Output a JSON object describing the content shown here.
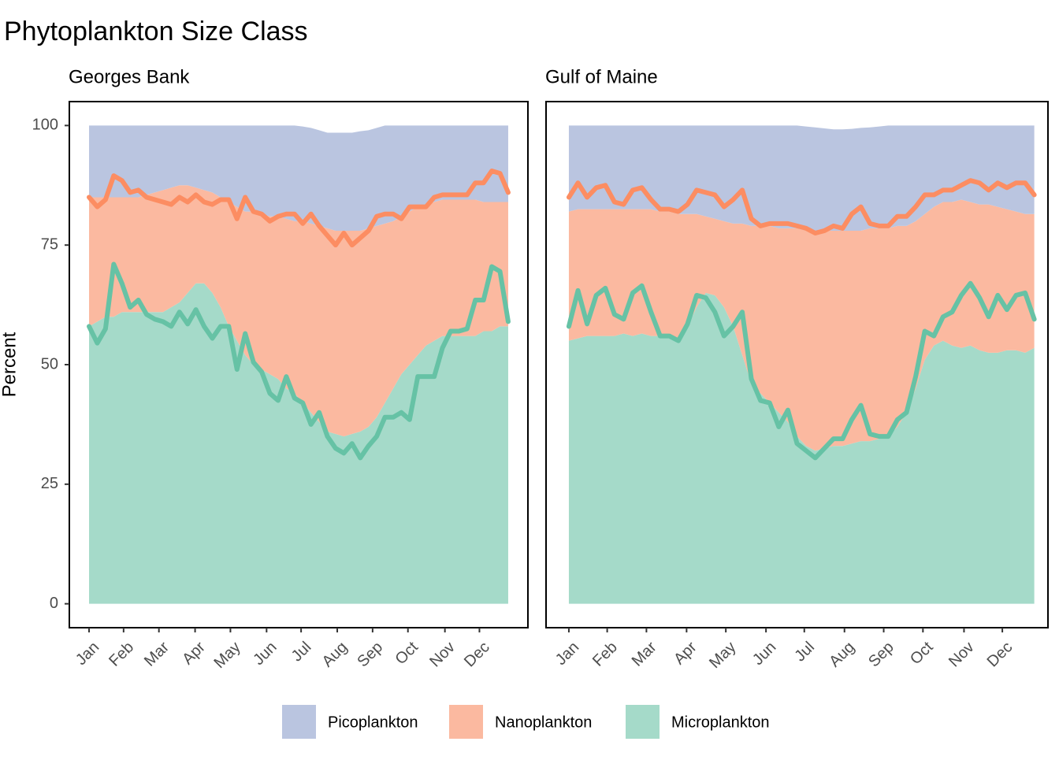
{
  "title": "Phytoplankton Size Class",
  "ylabel": "Percent",
  "chart_data": [
    {
      "type": "area",
      "subtitle": "Georges Bank",
      "x": [
        1,
        2,
        3,
        4,
        5,
        6,
        7,
        8,
        9,
        10,
        11,
        12,
        13,
        14,
        15,
        16,
        17,
        18,
        19,
        20,
        21,
        22,
        23,
        24,
        25,
        26,
        27,
        28,
        29,
        30,
        31,
        32,
        33,
        34,
        35,
        36,
        37,
        38,
        39,
        40,
        41,
        42,
        43,
        44,
        45,
        46,
        47,
        48,
        49,
        50,
        51,
        52
      ],
      "xlim": [
        -1.4,
        54.4
      ],
      "xticks": [
        {
          "value": 1,
          "label": "Jan"
        },
        {
          "value": 5.2,
          "label": "Feb"
        },
        {
          "value": 9.5,
          "label": "Mar"
        },
        {
          "value": 13.9,
          "label": "Apr"
        },
        {
          "value": 18.2,
          "label": "May"
        },
        {
          "value": 22.6,
          "label": "Jun"
        },
        {
          "value": 26.8,
          "label": "Jul"
        },
        {
          "value": 31.2,
          "label": "Aug"
        },
        {
          "value": 35.5,
          "label": "Sep"
        },
        {
          "value": 39.8,
          "label": "Oct"
        },
        {
          "value": 44.3,
          "label": "Nov"
        },
        {
          "value": 48.5,
          "label": "Dec"
        }
      ],
      "ylim": [
        -5,
        105
      ],
      "yticks": [
        0,
        25,
        50,
        75,
        100
      ],
      "stacked": true,
      "series": [
        {
          "name": "Picoplankton",
          "color": "#bac5e0",
          "values": [
            15,
            15,
            15,
            15,
            15,
            15,
            15,
            14.5,
            14,
            13.5,
            13,
            12.5,
            12.5,
            13,
            13.5,
            14,
            15,
            16,
            17,
            18,
            18,
            18.5,
            19,
            19,
            19.5,
            20,
            19.8,
            20,
            20,
            20,
            20.5,
            20.5,
            20.5,
            20.8,
            20.5,
            20.5,
            20.5,
            20,
            19,
            18,
            17,
            16.5,
            16,
            15.5,
            15.5,
            15.5,
            15.5,
            15.5,
            16,
            16,
            16,
            16
          ]
        },
        {
          "name": "Nanoplankton",
          "color": "#fbb9a0",
          "values": [
            27,
            26,
            25,
            25,
            24,
            24,
            24,
            24.5,
            25,
            25.5,
            25,
            24.5,
            22.5,
            20,
            19.5,
            21,
            23,
            26,
            28,
            30,
            32,
            32.5,
            33,
            34,
            35.5,
            36,
            38,
            39.5,
            41,
            42.5,
            42.5,
            43,
            42.5,
            42,
            41.5,
            40,
            37.5,
            35,
            33,
            32,
            31,
            29.5,
            29,
            28.5,
            28.5,
            28.5,
            28.5,
            28.5,
            27,
            27,
            26,
            26
          ]
        },
        {
          "name": "Microplankton",
          "color": "#a5dac9",
          "values": [
            58,
            59,
            60,
            60,
            61,
            61,
            61,
            61,
            61,
            61,
            62,
            63,
            65,
            67,
            67,
            65,
            62,
            58,
            55,
            52,
            50,
            49,
            48,
            47,
            45,
            44,
            42,
            40,
            38,
            36,
            35.5,
            35,
            35.5,
            36,
            37,
            39,
            42,
            45,
            48,
            50,
            52,
            54,
            55,
            56,
            56,
            56,
            56,
            56,
            57,
            57,
            58,
            58
          ]
        }
      ],
      "lines": [
        {
          "color": "#fc8d62",
          "values": [
            85,
            83,
            84.5,
            89.5,
            88.5,
            86,
            86.5,
            85,
            84.5,
            84,
            83.5,
            85,
            84,
            85.5,
            84,
            83.5,
            84.5,
            84.5,
            80.5,
            85,
            82,
            81.5,
            80,
            81,
            81.5,
            81.5,
            79.5,
            81.5,
            79,
            77,
            75,
            77.5,
            75,
            76.5,
            78,
            81,
            81.5,
            81.5,
            80.5,
            83,
            83,
            83,
            85,
            85.5,
            85.5,
            85.5,
            85.5,
            88,
            88,
            90.5,
            90,
            86
          ]
        },
        {
          "color": "#66c2a5",
          "values": [
            58,
            54.5,
            57.5,
            71,
            67,
            62,
            63.5,
            60.5,
            59.5,
            59,
            58,
            61,
            58.5,
            61.5,
            58,
            55.5,
            58,
            58,
            49,
            56.5,
            50.5,
            48.5,
            44,
            42.5,
            47.5,
            43,
            42,
            37.5,
            40,
            35,
            32.5,
            31.5,
            33.5,
            30.5,
            33,
            35,
            39,
            39,
            40,
            38.5,
            47.5,
            47.5,
            47.5,
            53.5,
            57,
            57,
            57.5,
            63.5,
            63.5,
            70.5,
            69.5,
            59
          ]
        }
      ]
    },
    {
      "type": "area",
      "subtitle": "Gulf of Maine",
      "x": [
        1,
        2,
        3,
        4,
        5,
        6,
        7,
        8,
        9,
        10,
        11,
        12,
        13,
        14,
        15,
        16,
        17,
        18,
        19,
        20,
        21,
        22,
        23,
        24,
        25,
        26,
        27,
        28,
        29,
        30,
        31,
        32,
        33,
        34,
        35,
        36,
        37,
        38,
        39,
        40,
        41,
        42,
        43,
        44,
        45,
        46,
        47,
        48,
        49,
        50,
        51,
        52
      ],
      "xlim": [
        -1.5,
        53.5
      ],
      "xticks": [
        {
          "value": 1,
          "label": "Jan"
        },
        {
          "value": 5.2,
          "label": "Feb"
        },
        {
          "value": 9.5,
          "label": "Mar"
        },
        {
          "value": 13.9,
          "label": "Apr"
        },
        {
          "value": 18.2,
          "label": "May"
        },
        {
          "value": 22.6,
          "label": "Jun"
        },
        {
          "value": 26.8,
          "label": "Jul"
        },
        {
          "value": 31.2,
          "label": "Aug"
        },
        {
          "value": 35.5,
          "label": "Sep"
        },
        {
          "value": 39.8,
          "label": "Oct"
        },
        {
          "value": 44.3,
          "label": "Nov"
        },
        {
          "value": 48.5,
          "label": "Dec"
        }
      ],
      "ylim": [
        -5,
        105
      ],
      "yticks": [
        0,
        25,
        50,
        75,
        100
      ],
      "stacked": true,
      "series": [
        {
          "name": "Picoplankton",
          "color": "#bac5e0",
          "values": [
            18,
            17.5,
            17.5,
            17.5,
            17.5,
            17.5,
            17.5,
            17.5,
            17.5,
            17.5,
            18,
            18,
            18.5,
            18.5,
            18.5,
            19,
            19.5,
            20,
            20.5,
            20.5,
            21,
            21,
            21,
            21.5,
            21.5,
            21.5,
            21.8,
            21.6,
            21.4,
            21.2,
            21.2,
            21.3,
            21.5,
            21.1,
            21.3,
            21.5,
            21,
            21,
            20,
            18.5,
            17,
            16,
            16,
            15.5,
            16,
            16.5,
            16.5,
            17,
            17.5,
            18,
            18.5,
            18.5
          ]
        },
        {
          "name": "Nanoplankton",
          "color": "#fbb9a0",
          "values": [
            27,
            27,
            26.5,
            26.5,
            26.5,
            26.5,
            26,
            26.5,
            26,
            26.5,
            26,
            26,
            26,
            23.5,
            19.5,
            16,
            16,
            18,
            21.5,
            27.5,
            33,
            35,
            37,
            38.5,
            40.5,
            43.5,
            45,
            46,
            45.5,
            45,
            45,
            44.5,
            44,
            44.5,
            44,
            43.5,
            42,
            39,
            35,
            30.5,
            29,
            29,
            30,
            31,
            30,
            30.5,
            31,
            30.5,
            29.5,
            29,
            29,
            28
          ]
        },
        {
          "name": "Microplankton",
          "color": "#a5dac9",
          "values": [
            55,
            55.5,
            56,
            56,
            56,
            56,
            56.5,
            56,
            56.5,
            56,
            56,
            56,
            55.5,
            58,
            62,
            65,
            64.5,
            62,
            58,
            52,
            46,
            44,
            42,
            40,
            38,
            35,
            33,
            32,
            32.5,
            33,
            33,
            33.5,
            34,
            34,
            34.5,
            35,
            37,
            40,
            45,
            51,
            54,
            55,
            54,
            53.5,
            54,
            53,
            52.5,
            52.5,
            53,
            53,
            52.5,
            53.5
          ]
        }
      ],
      "lines": [
        {
          "color": "#fc8d62",
          "values": [
            85,
            88,
            85,
            87,
            87.5,
            84,
            83.5,
            86.5,
            87,
            84.5,
            82.5,
            82.5,
            82,
            83.5,
            86.5,
            86,
            85.5,
            83,
            84.5,
            86.5,
            80.5,
            79,
            79.5,
            79.5,
            79.5,
            79,
            78.5,
            77.5,
            78,
            79,
            78.5,
            81.5,
            83,
            79.5,
            79,
            79,
            81,
            81,
            83,
            85.5,
            85.5,
            86.5,
            86.5,
            87.5,
            88.5,
            88,
            86.5,
            88,
            87,
            88,
            88,
            85.5
          ]
        },
        {
          "color": "#66c2a5",
          "values": [
            58,
            65.5,
            58.5,
            64.5,
            66,
            60.5,
            59.5,
            65,
            66.5,
            61,
            56,
            56,
            55,
            58.5,
            64.5,
            64,
            61,
            56,
            58,
            61,
            47,
            42.5,
            42,
            37,
            40.5,
            33.5,
            32,
            30.5,
            32.5,
            34.5,
            34.5,
            38.5,
            41.5,
            35.5,
            35,
            35,
            38.5,
            40,
            47.5,
            57,
            56,
            60,
            61,
            64.5,
            67,
            64,
            60,
            64.5,
            61.5,
            64.5,
            65,
            59.5
          ]
        }
      ]
    }
  ]
}
